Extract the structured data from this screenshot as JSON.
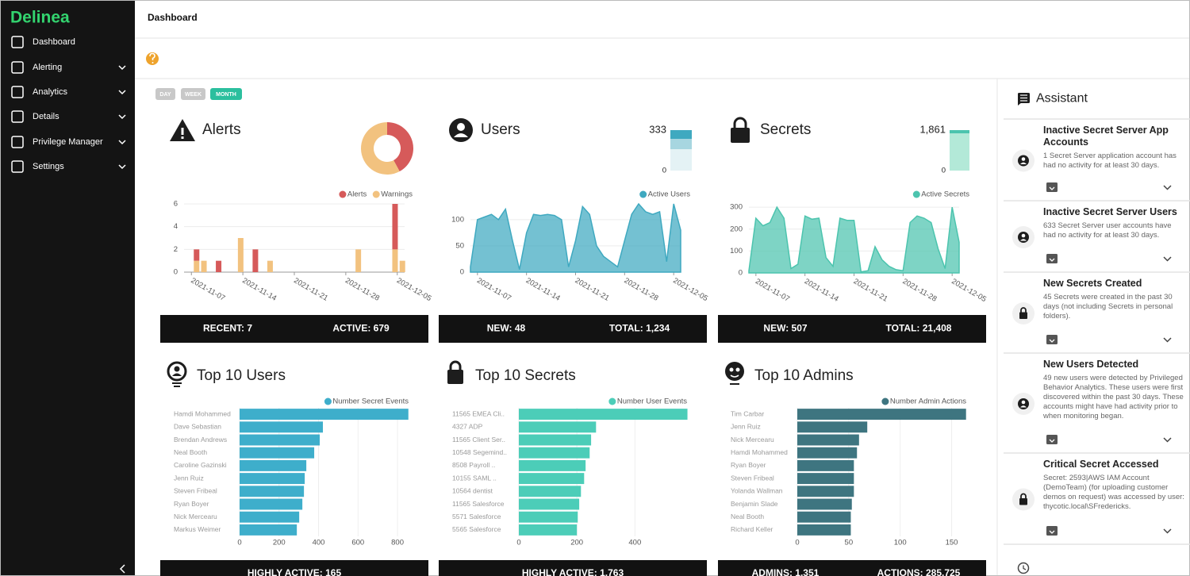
{
  "sidebar": {
    "logo": "Delinea",
    "items": [
      {
        "label": "Dashboard",
        "expandable": false
      },
      {
        "label": "Alerting",
        "expandable": true
      },
      {
        "label": "Analytics",
        "expandable": true
      },
      {
        "label": "Details",
        "expandable": true
      },
      {
        "label": "Privilege Manager",
        "expandable": true
      },
      {
        "label": "Settings",
        "expandable": true
      }
    ]
  },
  "header": {
    "title": "Dashboard"
  },
  "filters": {
    "buttons": [
      "DAY",
      "WEEK",
      "MONTH"
    ],
    "selected": 2
  },
  "cards": [
    {
      "title": "Alerts",
      "footer": [
        "RECENT: 7",
        "ACTIVE: 679"
      ]
    },
    {
      "title": "Users",
      "footer": [
        "NEW: 48",
        "TOTAL: 1,234"
      ]
    },
    {
      "title": "Secrets",
      "footer": [
        "NEW: 507",
        "TOTAL: 21,408"
      ]
    },
    {
      "title": "Top 10 Users",
      "footer": [
        "HIGHLY ACTIVE: 165"
      ]
    },
    {
      "title": "Top 10 Secrets",
      "footer": [
        "HIGHLY ACTIVE: 1,763"
      ]
    },
    {
      "title": "Top 10 Admins",
      "footer": [
        "ADMINS: 1,351",
        "ACTIONS: 285,725"
      ]
    }
  ],
  "chart_data": [
    {
      "type": "pie",
      "donut": true,
      "values": [
        8,
        11
      ],
      "colors": [
        "#d65a5a",
        "#f2c27f"
      ]
    },
    {
      "type": "bar",
      "stacked": true,
      "x": [
        "2021-11-07",
        "2021-11-08",
        "2021-11-10",
        "2021-11-13",
        "2021-11-15",
        "2021-11-17",
        "2021-11-29",
        "2021-12-04",
        "2021-12-05"
      ],
      "series": [
        {
          "name": "Alerts",
          "color": "#d65a5a",
          "values": [
            1,
            null,
            1,
            null,
            2,
            null,
            null,
            4,
            null
          ]
        },
        {
          "name": "Warnings",
          "color": "#f2c27f",
          "values": [
            1,
            1,
            null,
            3,
            null,
            1,
            2,
            2,
            1
          ]
        }
      ],
      "xlim": [
        "2021-11-06",
        "2021-12-06"
      ],
      "xticks": [
        "2021-11-07",
        "2021-11-14",
        "2021-11-21",
        "2021-11-28",
        "2021-12-05"
      ],
      "ylim": [
        0,
        6
      ],
      "yticks": [
        0,
        2,
        4,
        6
      ],
      "grid": true
    },
    {
      "type": "bar",
      "stacked": true,
      "ylim": [
        0,
        333
      ],
      "yticks": [
        0,
        333
      ],
      "series": [
        {
          "color": "#e4f2f5",
          "values": [
            176
          ]
        },
        {
          "color": "#a7d6e0",
          "values": [
            85
          ]
        },
        {
          "color": "#3fa9c0",
          "values": [
            72
          ]
        }
      ]
    },
    {
      "type": "area",
      "x": [
        "2021-11-06",
        "2021-11-07",
        "2021-11-08",
        "2021-11-09",
        "2021-11-10",
        "2021-11-11",
        "2021-11-12",
        "2021-11-13",
        "2021-11-14",
        "2021-11-15",
        "2021-11-16",
        "2021-11-17",
        "2021-11-18",
        "2021-11-19",
        "2021-11-20",
        "2021-11-21",
        "2021-11-22",
        "2021-11-23",
        "2021-11-24",
        "2021-11-25",
        "2021-11-26",
        "2021-11-27",
        "2021-11-28",
        "2021-11-29",
        "2021-11-30",
        "2021-12-01",
        "2021-12-02",
        "2021-12-03",
        "2021-12-04",
        "2021-12-05",
        "2021-12-06"
      ],
      "series": [
        {
          "name": "Active Users",
          "color": "#3fa9c0",
          "values": [
            10,
            100,
            105,
            110,
            100,
            120,
            60,
            5,
            75,
            110,
            108,
            110,
            108,
            100,
            10,
            60,
            125,
            110,
            50,
            30,
            20,
            10,
            60,
            110,
            130,
            115,
            110,
            115,
            20,
            130,
            80
          ]
        }
      ],
      "xlim": [
        "2021-11-06",
        "2021-12-06"
      ],
      "xticks": [
        "2021-11-07",
        "2021-11-14",
        "2021-11-21",
        "2021-11-28",
        "2021-12-05"
      ],
      "ylim": [
        0,
        130
      ],
      "yticks": [
        0,
        50,
        100
      ],
      "grid": true
    },
    {
      "type": "bar",
      "stacked": true,
      "ylim": [
        0,
        1861
      ],
      "yticks": [
        0,
        {
          "value": 1861,
          "label": "1,861"
        }
      ],
      "series": [
        {
          "color": "#b3e9d8",
          "values": [
            1712
          ]
        },
        {
          "color": "#4cc4ae",
          "values": [
            149
          ]
        }
      ]
    },
    {
      "type": "area",
      "x": [
        "2021-11-06",
        "2021-11-07",
        "2021-11-08",
        "2021-11-09",
        "2021-11-10",
        "2021-11-11",
        "2021-11-12",
        "2021-11-13",
        "2021-11-14",
        "2021-11-15",
        "2021-11-16",
        "2021-11-17",
        "2021-11-18",
        "2021-11-19",
        "2021-11-20",
        "2021-11-21",
        "2021-11-22",
        "2021-11-23",
        "2021-11-24",
        "2021-11-25",
        "2021-11-26",
        "2021-11-27",
        "2021-11-28",
        "2021-11-29",
        "2021-11-30",
        "2021-12-01",
        "2021-12-02",
        "2021-12-03",
        "2021-12-04",
        "2021-12-05",
        "2021-12-06"
      ],
      "series": [
        {
          "name": "Active Secrets",
          "color": "#4cc4ae",
          "values": [
            10,
            250,
            215,
            230,
            300,
            250,
            20,
            40,
            260,
            245,
            250,
            70,
            30,
            250,
            240,
            240,
            5,
            10,
            120,
            60,
            30,
            15,
            10,
            230,
            260,
            250,
            230,
            110,
            20,
            300,
            140
          ]
        }
      ],
      "xlim": [
        "2021-11-06",
        "2021-12-06"
      ],
      "xticks": [
        "2021-11-07",
        "2021-11-14",
        "2021-11-21",
        "2021-11-28",
        "2021-12-05"
      ],
      "ylim": [
        0,
        315
      ],
      "yticks": [
        0,
        100,
        200,
        300
      ],
      "grid": true
    },
    {
      "type": "barh",
      "categories": [
        "Hamdi Mohammed",
        "Dave Sebastian",
        "Brendan Andrews",
        "Neal Booth",
        "Caroline Gazinski",
        "Jenn Ruiz",
        "Steven Fribeal",
        "Ryan Boyer",
        "Nick Mercearu",
        "Markus Weimer"
      ],
      "series": [
        {
          "name": "Number Secret Events",
          "color": "#3eaecb",
          "values": [
            855,
            422,
            406,
            378,
            338,
            330,
            326,
            318,
            302,
            290
          ]
        }
      ],
      "xlim": [
        0,
        860
      ],
      "xticks": [
        0,
        200,
        400,
        600,
        800
      ],
      "grid": true
    },
    {
      "type": "barh",
      "categories": [
        "11565 EMEA Cli..",
        "4327 ADP",
        "11565 Client Ser..",
        "10548 Segemind..",
        "8508 Payroll ..",
        "10155 SAML ..",
        "10564 dentist",
        "11565 Salesforce",
        "5571 Salesforce",
        "5565 Salesforce"
      ],
      "series": [
        {
          "name": "Number User Events",
          "color": "#4ccdb8",
          "values": [
            581,
            266,
            249,
            244,
            230,
            225,
            214,
            208,
            203,
            200
          ]
        }
      ],
      "xlim": [
        0,
        585
      ],
      "xticks": [
        0,
        200,
        400
      ],
      "grid": true
    },
    {
      "type": "barh",
      "categories": [
        "Tim Carbar",
        "Jenn Ruiz",
        "Nick Mercearu",
        "Hamdi Mohammed",
        "Ryan Boyer",
        "Steven Fribeal",
        "Yolanda Wallman",
        "Benjamin Slade",
        "Neal Booth",
        "Richard Keller"
      ],
      "series": [
        {
          "name": "Number Admin Actions",
          "color": "#3e7580",
          "values": [
            164,
            68,
            60,
            58,
            55,
            55,
            55,
            53,
            52,
            52
          ]
        }
      ],
      "xlim": [
        0,
        165
      ],
      "xticks": [
        0,
        50,
        100,
        150
      ],
      "grid": true
    }
  ],
  "assistant": {
    "title": "Assistant",
    "items": [
      {
        "title": "Inactive Secret Server App Accounts",
        "text": "1 Secret Server application account has had no activity for at least 30 days."
      },
      {
        "title": "Inactive Secret Server Users",
        "text": "633 Secret Server user accounts have had no activity for at least 30 days."
      },
      {
        "title": "New Secrets Created",
        "text": "45 Secrets were created in the past 30 days (not including Secrets in personal folders)."
      },
      {
        "title": "New Users Detected",
        "text": "49 new users were detected by Privileged Behavior Analytics. These users were first discovered within the past 30 days. These accounts might have had activity prior to when monitoring began."
      },
      {
        "title": "Critical Secret Accessed",
        "text": "Secret: 2593|AWS IAM Account (DemoTeam) (for uploading customer demos on request) was accessed by user: thycotic.local\\SFredericks."
      }
    ]
  }
}
